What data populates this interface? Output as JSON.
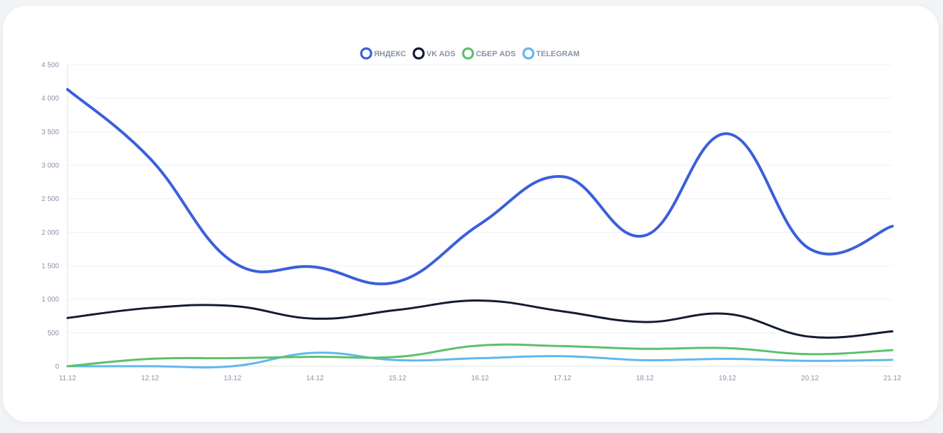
{
  "chart_data": {
    "type": "line",
    "title": "",
    "xlabel": "",
    "ylabel": "",
    "ylim": [
      0,
      4500
    ],
    "yticks": [
      0,
      500,
      1000,
      1500,
      2000,
      2500,
      3000,
      3500,
      4000,
      4500
    ],
    "ytick_labels": [
      "0",
      "500",
      "1 000",
      "1 500",
      "2 000",
      "2 500",
      "3 000",
      "3 500",
      "4 000",
      "4 500"
    ],
    "categories": [
      "11.12",
      "12.12",
      "13.12",
      "14.12",
      "15.12",
      "16.12",
      "17.12",
      "18.12",
      "19.12",
      "20.12",
      "21.12"
    ],
    "grid": true,
    "legend_position": "top-center",
    "series": [
      {
        "name": "ЯНДЕКС",
        "color": "#3a5fdc",
        "values": [
          4130,
          3100,
          1560,
          1480,
          1260,
          2120,
          2830,
          1950,
          3470,
          1750,
          2090
        ]
      },
      {
        "name": "VK ADS",
        "color": "#141b33",
        "values": [
          720,
          870,
          900,
          710,
          840,
          980,
          820,
          660,
          780,
          440,
          520
        ]
      },
      {
        "name": "СБЕР ADS",
        "color": "#5cc06a",
        "values": [
          0,
          110,
          120,
          140,
          140,
          310,
          300,
          260,
          270,
          180,
          240
        ]
      },
      {
        "name": "TELEGRAM",
        "color": "#62b7ec",
        "values": [
          0,
          0,
          0,
          200,
          90,
          120,
          150,
          90,
          110,
          80,
          95
        ]
      }
    ]
  }
}
